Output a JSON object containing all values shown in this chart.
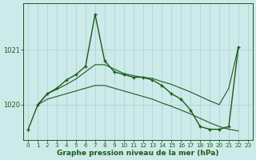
{
  "title": "Graphe pression niveau de la mer (hPa)",
  "x_labels": [
    "0",
    "1",
    "2",
    "3",
    "4",
    "5",
    "6",
    "7",
    "8",
    "9",
    "10",
    "11",
    "12",
    "13",
    "14",
    "15",
    "16",
    "17",
    "18",
    "19",
    "20",
    "21",
    "22",
    "23"
  ],
  "main_x": [
    0,
    1,
    2,
    3,
    4,
    5,
    6,
    7,
    8,
    9,
    10,
    11,
    12,
    13,
    14,
    15,
    16,
    17,
    18,
    19,
    20,
    21,
    22
  ],
  "main_y": [
    1019.55,
    1020.0,
    1020.2,
    1020.3,
    1020.45,
    1020.55,
    1020.7,
    1021.65,
    1020.8,
    1020.6,
    1020.55,
    1020.5,
    1020.5,
    1020.45,
    1020.35,
    1020.2,
    1020.1,
    1019.9,
    1019.6,
    1019.55,
    1019.55,
    1019.6,
    1021.05
  ],
  "upper_x": [
    1,
    2,
    3,
    4,
    5,
    6,
    7,
    8,
    9,
    10,
    11,
    12,
    13,
    14,
    15,
    16,
    17,
    18,
    19,
    20,
    21,
    22
  ],
  "upper_y": [
    1020.0,
    1020.2,
    1020.28,
    1020.37,
    1020.47,
    1020.6,
    1020.73,
    1020.73,
    1020.65,
    1020.57,
    1020.53,
    1020.5,
    1020.48,
    1020.42,
    1020.37,
    1020.3,
    1020.23,
    1020.15,
    1020.07,
    1020.0,
    1020.3,
    1021.05
  ],
  "lower_x": [
    1,
    2,
    3,
    4,
    5,
    6,
    7,
    8,
    9,
    10,
    11,
    12,
    13,
    14,
    15,
    16,
    17,
    18,
    19,
    20,
    21,
    22
  ],
  "lower_y": [
    1020.0,
    1020.1,
    1020.15,
    1020.2,
    1020.25,
    1020.3,
    1020.35,
    1020.35,
    1020.3,
    1020.25,
    1020.2,
    1020.15,
    1020.1,
    1020.03,
    1019.97,
    1019.9,
    1019.83,
    1019.75,
    1019.67,
    1019.6,
    1019.55,
    1019.52
  ],
  "bg_color": "#cdeaea",
  "line_color": "#1a5c1a",
  "grid_color": "#aacece",
  "yticks": [
    1020,
    1021
  ],
  "ylim": [
    1019.35,
    1021.85
  ],
  "xlim": [
    -0.5,
    23.5
  ]
}
